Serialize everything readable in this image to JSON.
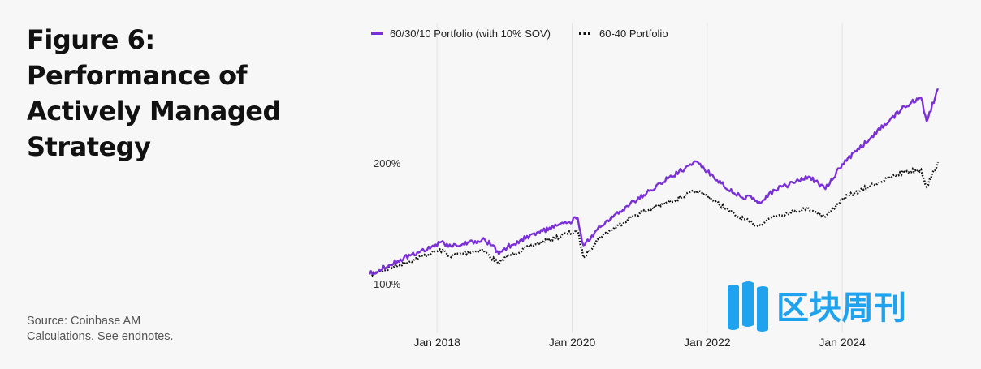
{
  "title_lines": [
    "Figure 6:",
    "Performance of",
    "Actively Managed",
    "Strategy"
  ],
  "source_lines": [
    "Source: Coinbase AM",
    "Calculations. See endnotes."
  ],
  "watermark": "区块周刊",
  "colors": {
    "portfolio_6030": "#7b2fd6",
    "portfolio_6040": "#111111",
    "watermark": "#1fa3ee"
  },
  "chart_data": {
    "type": "line",
    "x_ticks": [
      "Jan 2018",
      "Jan 2020",
      "Jan 2022",
      "Jan 2024"
    ],
    "x_range": [
      "2017-01",
      "2025-06"
    ],
    "y_scale": "log",
    "y_ticks": [
      "100%",
      "200%"
    ],
    "y_tick_values": [
      100,
      200
    ],
    "y_range": [
      75,
      400
    ],
    "grid": "vertical",
    "legend_position": "top",
    "series": [
      {
        "name": "60/30/10 Portfolio (with 10% SOV)",
        "style": "solid",
        "color": "#7b2fd6",
        "points": [
          [
            "2017-01",
            100
          ],
          [
            "2017-06",
            108
          ],
          [
            "2017-12",
            117
          ],
          [
            "2018-02",
            121
          ],
          [
            "2018-03",
            117
          ],
          [
            "2018-09",
            122
          ],
          [
            "2018-11",
            118
          ],
          [
            "2018-12",
            112
          ],
          [
            "2019-01",
            116
          ],
          [
            "2019-06",
            126
          ],
          [
            "2019-12",
            134
          ],
          [
            "2020-02",
            138
          ],
          [
            "2020-03",
            118
          ],
          [
            "2020-06",
            131
          ],
          [
            "2020-12",
            152
          ],
          [
            "2021-03",
            162
          ],
          [
            "2021-06",
            173
          ],
          [
            "2021-11",
            191
          ],
          [
            "2022-01",
            180
          ],
          [
            "2022-06",
            158
          ],
          [
            "2022-09",
            154
          ],
          [
            "2022-10",
            150
          ],
          [
            "2023-01",
            162
          ],
          [
            "2023-07",
            175
          ],
          [
            "2023-10",
            163
          ],
          [
            "2024-01",
            188
          ],
          [
            "2024-06",
            218
          ],
          [
            "2024-12",
            262
          ],
          [
            "2025-03",
            275
          ],
          [
            "2025-04",
            240
          ],
          [
            "2025-06",
            290
          ]
        ]
      },
      {
        "name": "60-40 Portfolio",
        "style": "dotted",
        "color": "#111111",
        "points": [
          [
            "2017-01",
            100
          ],
          [
            "2017-06",
            105
          ],
          [
            "2017-12",
            113
          ],
          [
            "2018-02",
            115
          ],
          [
            "2018-03",
            111
          ],
          [
            "2018-09",
            115
          ],
          [
            "2018-12",
            106
          ],
          [
            "2019-01",
            110
          ],
          [
            "2019-06",
            118
          ],
          [
            "2019-12",
            126
          ],
          [
            "2020-02",
            128
          ],
          [
            "2020-03",
            110
          ],
          [
            "2020-06",
            124
          ],
          [
            "2020-12",
            140
          ],
          [
            "2021-06",
            151
          ],
          [
            "2021-11",
            161
          ],
          [
            "2022-01",
            157
          ],
          [
            "2022-06",
            140
          ],
          [
            "2022-10",
            132
          ],
          [
            "2023-01",
            140
          ],
          [
            "2023-07",
            146
          ],
          [
            "2023-10",
            139
          ],
          [
            "2024-01",
            154
          ],
          [
            "2024-06",
            166
          ],
          [
            "2024-12",
            180
          ],
          [
            "2025-03",
            182
          ],
          [
            "2025-04",
            165
          ],
          [
            "2025-06",
            190
          ]
        ]
      }
    ]
  }
}
